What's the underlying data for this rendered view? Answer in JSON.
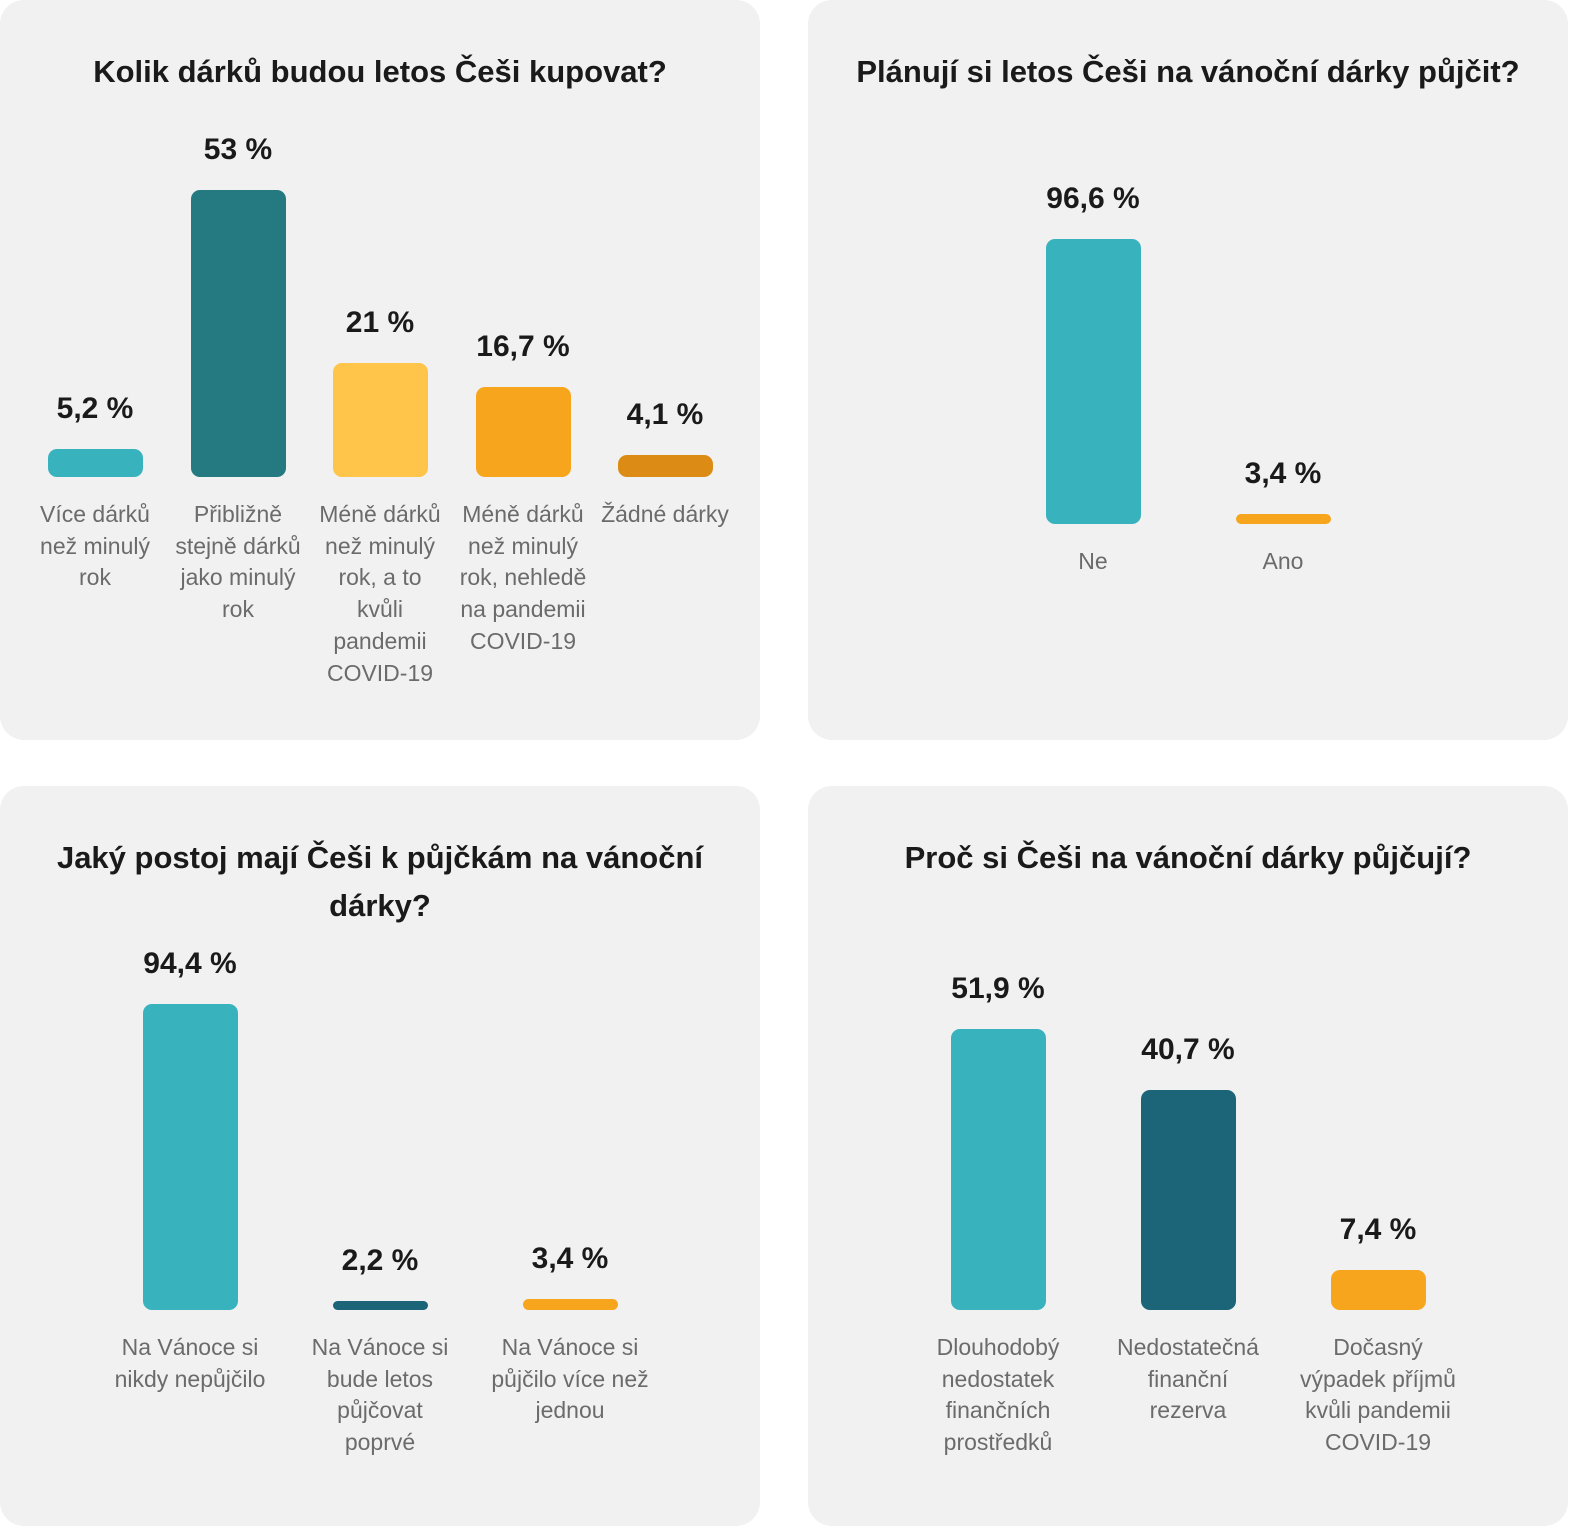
{
  "chart_data": [
    {
      "type": "bar",
      "title": "Kolik dárků budou letos Češi kupovat?",
      "categories": [
        "Více dárků než minulý rok",
        "Přibližně stejně dárků jako minulý rok",
        "Méně dárků než minulý rok, a to kvůli pandemii COVID-19",
        "Méně dárků než minulý rok, nehledě na pandemii COVID-19",
        "Žádné dárky"
      ],
      "values": [
        5.2,
        53,
        21,
        16.7,
        4.1
      ],
      "value_labels": [
        "5,2 %",
        "53 %",
        "21 %",
        "16,7 %",
        "4,1 %"
      ],
      "colors": [
        "#38b3bd",
        "#247a80",
        "#ffc54a",
        "#f8a51e",
        "#dc8c14"
      ],
      "ylim": [
        0,
        53
      ],
      "grid": false
    },
    {
      "type": "bar",
      "title": "Plánují si letos Češi na vánoční dárky půjčit?",
      "categories": [
        "Ne",
        "Ano"
      ],
      "values": [
        96.6,
        3.4
      ],
      "value_labels": [
        "96,6 %",
        "3,4 %"
      ],
      "colors": [
        "#38b3bd",
        "#f8a51e"
      ],
      "ylim": [
        0,
        96.6
      ],
      "grid": false
    },
    {
      "type": "bar",
      "title": "Jaký postoj mají Češi k půjčkám na vánoční dárky?",
      "categories": [
        "Na Vánoce si nikdy nepůjčilo",
        "Na Vánoce si bude letos půjčovat poprvé",
        "Na Vánoce si půjčilo více než jednou"
      ],
      "values": [
        94.4,
        2.2,
        3.4
      ],
      "value_labels": [
        "94,4 %",
        "2,2 %",
        "3,4 %"
      ],
      "colors": [
        "#38b3bd",
        "#1c6478",
        "#f8a51e"
      ],
      "ylim": [
        0,
        94.4
      ],
      "grid": false
    },
    {
      "type": "bar",
      "title": "Proč si Češi na vánoční dárky půjčují?",
      "categories": [
        "Dlouhodobý nedostatek finančních prostředků",
        "Nedostatečná finanční rezerva",
        "Dočasný výpadek příjmů kvůli pandemii COVID-19"
      ],
      "values": [
        51.9,
        40.7,
        7.4
      ],
      "value_labels": [
        "51,9 %",
        "40,7 %",
        "7,4 %"
      ],
      "colors": [
        "#38b3bd",
        "#1c6478",
        "#f8a51e"
      ],
      "ylim": [
        0,
        51.9
      ],
      "grid": false
    }
  ]
}
